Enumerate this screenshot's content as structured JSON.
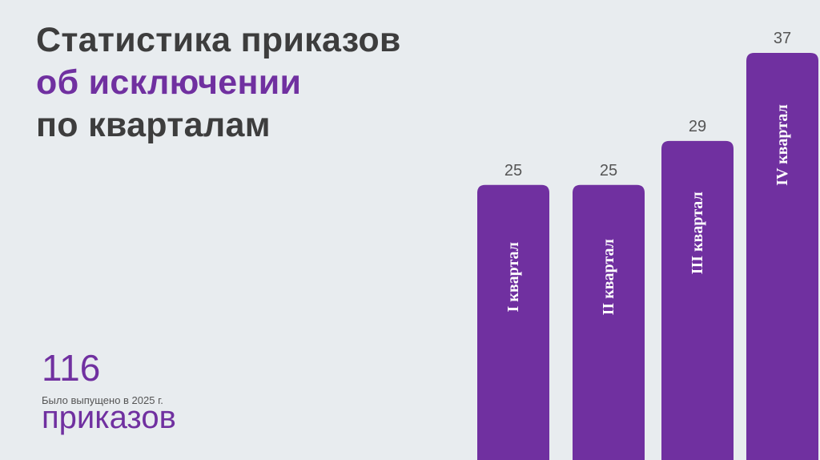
{
  "title": {
    "line1": "Статистика приказов",
    "line2": "об исключении",
    "line3": "по кварталам"
  },
  "summary": {
    "total": "116",
    "unit": "приказов",
    "note": "Было выпущено в 2025 г."
  },
  "colors": {
    "accent": "#7030a0",
    "text_dark": "#3d3d3d",
    "background": "#e8ecef"
  },
  "chart_data": {
    "type": "bar",
    "categories": [
      "I квартал",
      "II квартал",
      "III квартал",
      "IV квартал"
    ],
    "values": [
      25,
      25,
      29,
      37
    ],
    "title": "Статистика приказов об исключении по кварталам",
    "xlabel": "",
    "ylabel": "",
    "data_labels": true,
    "category_labels_inside_bars": true,
    "legend": "none",
    "grid": false
  }
}
